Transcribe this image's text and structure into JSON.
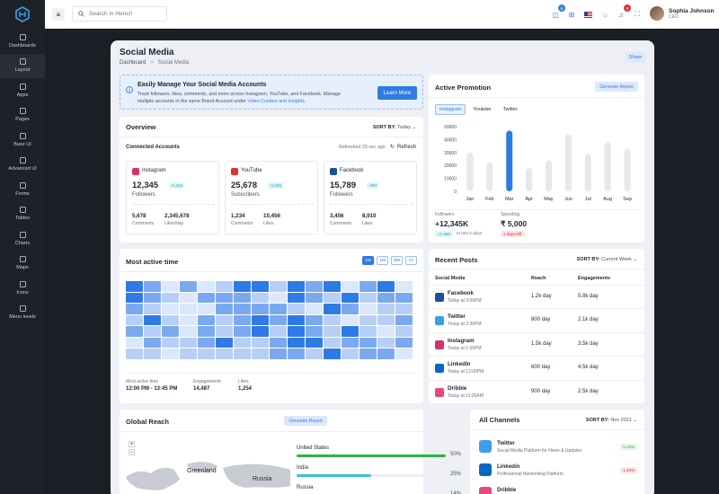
{
  "app": {
    "search_placeholder": "Search in Herozi"
  },
  "sidebar": {
    "items": [
      {
        "label": "Dashboards",
        "icon": "home-icon"
      },
      {
        "label": "Layout",
        "icon": "layout-icon",
        "active": true
      },
      {
        "label": "Apps",
        "icon": "grid-icon"
      },
      {
        "label": "Pages",
        "icon": "pages-icon"
      },
      {
        "label": "Base UI",
        "icon": "base-ui-icon"
      },
      {
        "label": "Advanced UI",
        "icon": "advanced-ui-icon"
      },
      {
        "label": "Forms",
        "icon": "forms-icon"
      },
      {
        "label": "Tables",
        "icon": "tables-icon"
      },
      {
        "label": "Charts",
        "icon": "charts-icon"
      },
      {
        "label": "Maps",
        "icon": "maps-icon"
      },
      {
        "label": "Icons",
        "icon": "icons-icon"
      },
      {
        "label": "Menu levels",
        "icon": "menu-levels-icon"
      }
    ]
  },
  "topbar": {
    "cart_badge": "5",
    "notif_badge": "9"
  },
  "user": {
    "name": "Sophia Johnson",
    "role": "CEO"
  },
  "page": {
    "title": "Social Media",
    "crumb_home": "Dashboard",
    "crumb_sep": ">",
    "crumb_current": "Social Media",
    "share": "Share"
  },
  "banner": {
    "title": "Easily Manage Your Social Media Accounts",
    "text1": "Track followers, likes, comments, and more across Instagram, YouTube, and Facebook. Manage",
    "text2": "multiple accounts in the same Brand Account under ",
    "link": "Video Content and Insights.",
    "button": "Learn More"
  },
  "overview": {
    "title": "Overview",
    "sort_label": "SORT BY:",
    "sort_value": "Today",
    "connected": "Connected Accounts",
    "refreshed": "Refreshed 20 sec ago",
    "refresh": "Refresh",
    "accounts": [
      {
        "name": "Instagram",
        "count": "12,345",
        "delta": "+1,234",
        "unit": "Followers",
        "s1": "5,678",
        "s1l": "Comments",
        "s2": "2,345,678",
        "s2l": "Likes/day",
        "color": "#d6336c",
        "icon": "instagram-icon"
      },
      {
        "name": "YouTube",
        "count": "25,678",
        "delta": "+2,345",
        "unit": "Subscribers",
        "s1": "1,234",
        "s1l": "Comments",
        "s2": "10,456",
        "s2l": "Likes",
        "color": "#e03131",
        "icon": "youtube-icon"
      },
      {
        "name": "Facebook",
        "count": "15,789",
        "delta": "+987",
        "unit": "Followers",
        "s1": "3,456",
        "s1l": "Comments",
        "s2": "8,910",
        "s2l": "Likes",
        "color": "#1c4f9c",
        "icon": "facebook-icon"
      }
    ]
  },
  "promotion": {
    "title": "Active Promotion",
    "button": "Generate Report",
    "tabs": [
      "Instagram",
      "Youtube",
      "Twitter"
    ],
    "followers_label": "Followers",
    "followers": "+12,345K",
    "followers_delta": "+1,666",
    "followers_note": "In last 2 days",
    "spending_label": "Spending",
    "spending": "₹ 5,000",
    "spending_note": "2 days left"
  },
  "chart_data": {
    "type": "bar",
    "categories": [
      "Jan",
      "Feb",
      "Mar",
      "Apr",
      "May",
      "Jun",
      "Jul",
      "Aug",
      "Sep"
    ],
    "values": [
      30000,
      22000,
      47000,
      18000,
      24000,
      44000,
      29000,
      38000,
      33000
    ],
    "highlight": "Mar",
    "ylim": [
      0,
      50000
    ],
    "yticks": [
      "50000",
      "40000",
      "30000",
      "20000",
      "10000",
      "0"
    ]
  },
  "active_time": {
    "title": "Most active time",
    "ranges": [
      "1W",
      "1M",
      "6M",
      "1Y"
    ],
    "s1l": "Most active time",
    "s1": "12:00 PM - 13:45 PM",
    "s2l": "Engagements",
    "s2": "14,487",
    "s3l": "Likes",
    "s3": "1,254",
    "grid": [
      [
        4,
        3,
        1,
        3,
        1,
        2,
        4,
        4,
        2,
        4,
        3,
        4,
        1,
        3,
        4,
        1
      ],
      [
        4,
        3,
        2,
        1,
        3,
        3,
        3,
        2,
        1,
        4,
        3,
        2,
        4,
        2,
        3,
        3
      ],
      [
        3,
        2,
        1,
        1,
        1,
        3,
        3,
        3,
        3,
        2,
        1,
        4,
        3,
        1,
        2,
        2
      ],
      [
        2,
        4,
        2,
        1,
        3,
        2,
        3,
        4,
        3,
        4,
        3,
        2,
        1,
        2,
        2,
        3
      ],
      [
        3,
        2,
        3,
        1,
        3,
        2,
        3,
        4,
        2,
        4,
        3,
        2,
        4,
        2,
        1,
        2
      ],
      [
        1,
        3,
        2,
        2,
        3,
        4,
        2,
        2,
        3,
        4,
        4,
        2,
        3,
        3,
        2,
        3
      ],
      [
        2,
        2,
        1,
        2,
        2,
        2,
        2,
        2,
        3,
        3,
        2,
        4,
        2,
        3,
        3,
        1
      ]
    ]
  },
  "posts": {
    "title": "Recent Posts",
    "sort_label": "SORT BY:",
    "sort_value": "Current Week",
    "cols": [
      "Social Media",
      "Reach",
      "Engagements"
    ],
    "rows": [
      {
        "name": "Facebook",
        "time": "Today at 3:00PM",
        "reach": "1.2k day",
        "eng": "5.8k day",
        "color": "#1c4f9c",
        "icon": "facebook-icon"
      },
      {
        "name": "Twitter",
        "time": "Today at 2:30PM",
        "reach": "800 day",
        "eng": "2.1k day",
        "color": "#3b9fe8",
        "icon": "twitter-icon"
      },
      {
        "name": "Instagram",
        "time": "Today at 1:00PM",
        "reach": "1.5k day",
        "eng": "3.5k day",
        "color": "#d6336c",
        "icon": "instagram-icon"
      },
      {
        "name": "LinkedIn",
        "time": "Today at 12:00PM",
        "reach": "600 day",
        "eng": "4.5k day",
        "color": "#0a66c2",
        "icon": "linkedin-icon"
      },
      {
        "name": "Dribble",
        "time": "Today at 11:00AM",
        "reach": "900 day",
        "eng": "2.5k day",
        "color": "#e64980",
        "icon": "dribbble-icon"
      }
    ]
  },
  "reach": {
    "title": "Global Reach",
    "button": "Generate Report",
    "map_labels": [
      "Greenland",
      "Russia"
    ],
    "countries": [
      {
        "name": "United States",
        "pct": "50%",
        "value": 50,
        "color": "#2fb344"
      },
      {
        "name": "India",
        "pct": "25%",
        "value": 25,
        "color": "#3bc0d6"
      },
      {
        "name": "Russia",
        "pct": "14%",
        "value": 14,
        "color": "#f59f00"
      }
    ]
  },
  "channels": {
    "title": "All Channels",
    "sort_label": "SORT BY:",
    "sort_value": "Nov 2021",
    "items": [
      {
        "name": "Twitter",
        "desc": "Social Media Platform for News & Updates",
        "delta": "5.12%",
        "up": true,
        "color": "#3b9fe8",
        "icon": "twitter-icon"
      },
      {
        "name": "Linkedin",
        "desc": "Professional Networking Platform",
        "delta": "1.45%",
        "up": false,
        "color": "#0a66c2",
        "icon": "linkedin-icon"
      },
      {
        "name": "Dribble",
        "desc": "",
        "delta": "",
        "up": true,
        "color": "#e64980",
        "icon": "dribbble-icon"
      }
    ]
  }
}
